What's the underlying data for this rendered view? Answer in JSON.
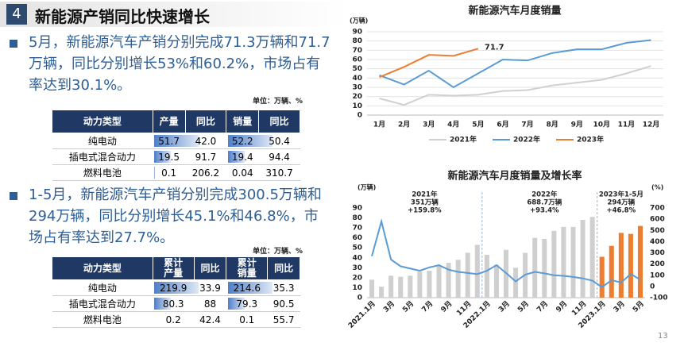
{
  "header": {
    "number": "4",
    "title": "新能源产销同比快速增长"
  },
  "bullets": [
    "5月，新能源汽车产销分别完成71.3万辆和71.7万辆，同比分别增长53%和60.2%，市场占有率达到30.1%。",
    "1-5月，新能源汽车产销分别完成300.5万辆和294万辆，同比分别增长45.1%和46.8%，市场占有率达到27.7%。"
  ],
  "tables": [
    {
      "unit": "单位：万辆、%",
      "header": [
        "动力类型",
        "产量",
        "同比",
        "销量",
        "同比"
      ],
      "rows": [
        [
          "纯电动",
          "51.7",
          "42.0",
          "52.2",
          "50.4"
        ],
        [
          "插电式混合动力",
          "19.5",
          "91.7",
          "19.4",
          "94.4"
        ],
        [
          "燃料电池",
          "0.1",
          "206.2",
          "0.04",
          "310.7"
        ]
      ],
      "data_bars": {
        "columns": [
          1,
          3
        ],
        "color": "#4f7fc8"
      }
    },
    {
      "unit": "单位：万辆、%",
      "header": [
        "动力类型",
        "累计\n产量",
        "同比",
        "累计\n销量",
        "同比"
      ],
      "rows": [
        [
          "纯电动",
          "219.9",
          "33.9",
          "214.6",
          "35.3"
        ],
        [
          "插电式混合动力",
          "80.3",
          "88",
          "79.3",
          "90.5"
        ],
        [
          "燃料电池",
          "0.2",
          "42.4",
          "0.1",
          "55.7"
        ]
      ],
      "data_bars": {
        "columns": [
          1,
          3
        ],
        "color": "#4f7fc8"
      }
    }
  ],
  "page_number": "13",
  "chart_data": [
    {
      "type": "line",
      "title": "新能源汽车月度销量",
      "y_label": "(万辆)",
      "categories": [
        "1月",
        "2月",
        "3月",
        "4月",
        "5月",
        "6月",
        "7月",
        "8月",
        "9月",
        "10月",
        "11月",
        "12月"
      ],
      "ylim": [
        0,
        90
      ],
      "yticks": [
        0,
        10,
        20,
        30,
        40,
        50,
        60,
        70,
        80,
        90
      ],
      "grid": true,
      "legend": "bottom",
      "series": [
        {
          "name": "2021年",
          "color": "#d0d0d0",
          "values": [
            18,
            11,
            22,
            21,
            22,
            26,
            27,
            32,
            35,
            38,
            45,
            53
          ]
        },
        {
          "name": "2022年",
          "color": "#5b9bd5",
          "values": [
            43,
            33,
            48,
            30,
            45,
            60,
            59,
            67,
            71,
            71,
            78,
            81
          ]
        },
        {
          "name": "2023年",
          "color": "#ed7d31",
          "values": [
            41,
            52,
            65,
            64,
            71.7,
            null,
            null,
            null,
            null,
            null,
            null,
            null
          ]
        }
      ]
    },
    {
      "type": "bar",
      "title": "新能源汽车月度销量及增长率",
      "y_label": "(万辆)",
      "y2_label": "(%)",
      "categories": [
        "2021.1月",
        null,
        "3月",
        null,
        "5月",
        null,
        "7月",
        null,
        "9月",
        null,
        "11月",
        null,
        "2022.1月",
        null,
        "3月",
        null,
        "5月",
        null,
        "7月",
        null,
        "9月",
        null,
        "11月",
        null,
        "2023.1月",
        null,
        "3月",
        null,
        "5月"
      ],
      "ylim": [
        0,
        90
      ],
      "yticks": [
        0,
        10,
        20,
        30,
        40,
        50,
        60,
        70,
        80,
        90
      ],
      "y2lim": [
        -100,
        700
      ],
      "y2ticks": [
        -100,
        0,
        100,
        200,
        300,
        400,
        500,
        600,
        700
      ],
      "grid": false,
      "annotations": [
        [
          "2021年",
          "351万辆",
          "+159.8%"
        ],
        [
          "2022年",
          "688.7万辆",
          "+93.4%"
        ],
        [
          "2023年1-5月",
          "294万辆",
          "+46.8%"
        ]
      ],
      "series": [
        {
          "type": "bar",
          "color": "#cfcfcf",
          "values": [
            18,
            11,
            22,
            21,
            22,
            26,
            27,
            32,
            35,
            38,
            45,
            53,
            43,
            33,
            48,
            30,
            45,
            60,
            59,
            67,
            71,
            71,
            78,
            81,
            null,
            null,
            null,
            null,
            null
          ]
        },
        {
          "type": "bar",
          "color": "#ed7d31",
          "values": [
            null,
            null,
            null,
            null,
            null,
            null,
            null,
            null,
            null,
            null,
            null,
            null,
            null,
            null,
            null,
            null,
            null,
            null,
            null,
            null,
            null,
            null,
            null,
            null,
            41,
            52,
            65,
            64,
            72
          ]
        },
        {
          "type": "line",
          "axis": "y2",
          "color": "#5b9bd5",
          "values": [
            270,
            580,
            240,
            180,
            160,
            140,
            170,
            190,
            150,
            130,
            120,
            110,
            140,
            190,
            120,
            45,
            105,
            130,
            117,
            100,
            95,
            85,
            72,
            52,
            -6,
            56,
            35,
            112,
            60
          ]
        }
      ]
    }
  ]
}
